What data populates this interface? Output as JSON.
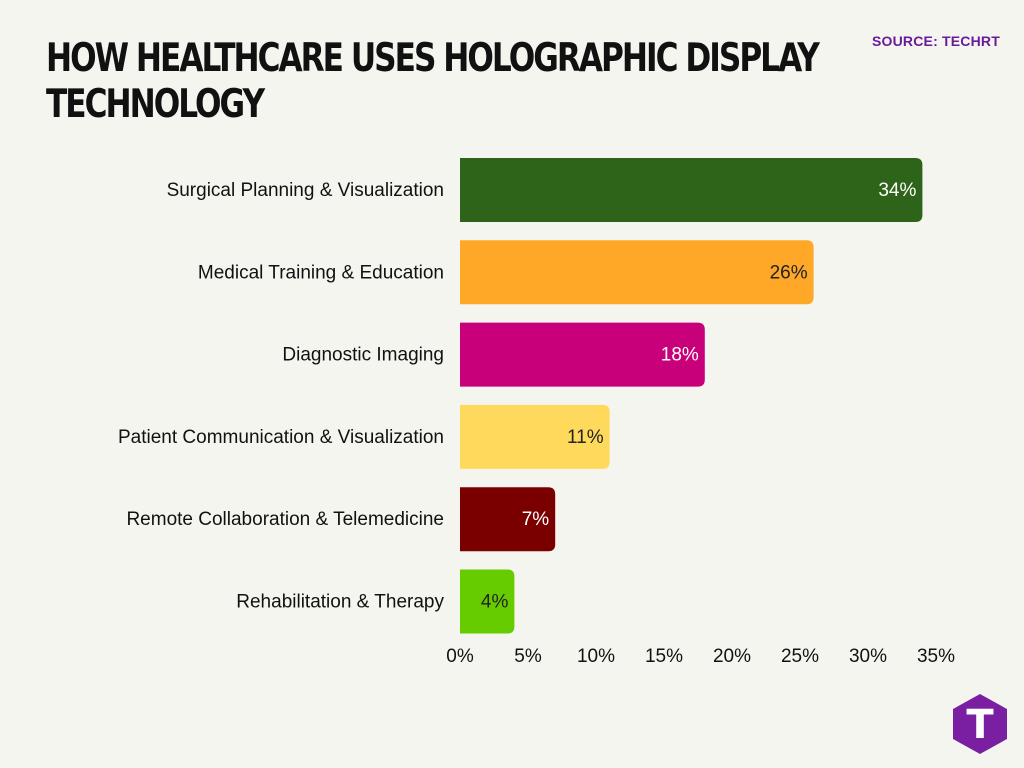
{
  "title_line1": "HOW HEALTHCARE USES HOLOGRAPHIC DISPLAY",
  "title_line2": "TECHNOLOGY",
  "source": "SOURCE: TECHRT",
  "logo_letter": "T",
  "logo_color": "#7b1fa2",
  "chart_data": {
    "type": "bar",
    "orientation": "horizontal",
    "categories": [
      "Surgical Planning & Visualization",
      "Medical Training & Education",
      "Diagnostic Imaging",
      "Patient Communication & Visualization",
      "Remote Collaboration & Telemedicine",
      "Rehabilitation & Therapy"
    ],
    "values": [
      34,
      26,
      18,
      11,
      7,
      4
    ],
    "value_labels": [
      "34%",
      "26%",
      "18%",
      "11%",
      "7%",
      "4%"
    ],
    "colors": [
      "#2e6419",
      "#ffa726",
      "#c8007a",
      "#ffd95c",
      "#7a0000",
      "#66cc00"
    ],
    "label_colors": [
      "#ffffff",
      "#222222",
      "#ffffff",
      "#222222",
      "#ffffff",
      "#222222"
    ],
    "xlim": [
      0,
      35
    ],
    "xticks": [
      0,
      5,
      10,
      15,
      20,
      25,
      30,
      35
    ],
    "xtick_labels": [
      "0%",
      "5%",
      "10%",
      "15%",
      "20%",
      "25%",
      "30%",
      "35%"
    ],
    "title": "HOW HEALTHCARE USES HOLOGRAPHIC DISPLAY TECHNOLOGY",
    "xlabel": "",
    "ylabel": "",
    "grid": false,
    "legend": "none"
  }
}
